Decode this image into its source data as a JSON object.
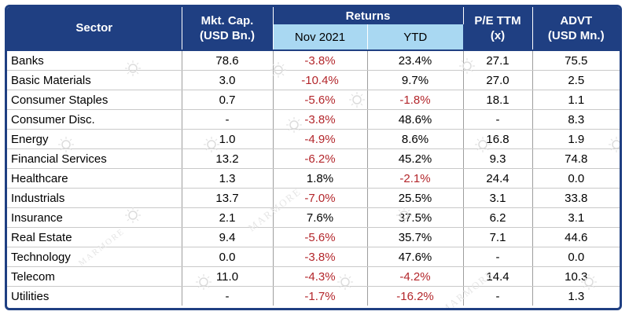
{
  "table": {
    "headers": {
      "sector": "Sector",
      "mktcap_line1": "Mkt. Cap.",
      "mktcap_line2": "(USD Bn.)",
      "returns": "Returns",
      "nov": "Nov 2021",
      "ytd": "YTD",
      "pe_line1": "P/E TTM",
      "pe_line2": "(x)",
      "advt_line1": "ADVT",
      "advt_line2": "(USD Mn.)"
    },
    "rows": [
      {
        "sector": "Banks",
        "mktcap": "78.6",
        "nov": "-3.8%",
        "ytd": "23.4%",
        "pe": "27.1",
        "advt": "75.5"
      },
      {
        "sector": "Basic Materials",
        "mktcap": "3.0",
        "nov": "-10.4%",
        "ytd": "9.7%",
        "pe": "27.0",
        "advt": "2.5"
      },
      {
        "sector": "Consumer Staples",
        "mktcap": "0.7",
        "nov": "-5.6%",
        "ytd": "-1.8%",
        "pe": "18.1",
        "advt": "1.1"
      },
      {
        "sector": "Consumer Disc.",
        "mktcap": "-",
        "nov": "-3.8%",
        "ytd": "48.6%",
        "pe": "-",
        "advt": "8.3"
      },
      {
        "sector": "Energy",
        "mktcap": "1.0",
        "nov": "-4.9%",
        "ytd": "8.6%",
        "pe": "16.8",
        "advt": "1.9"
      },
      {
        "sector": "Financial Services",
        "mktcap": "13.2",
        "nov": "-6.2%",
        "ytd": "45.2%",
        "pe": "9.3",
        "advt": "74.8"
      },
      {
        "sector": "Healthcare",
        "mktcap": "1.3",
        "nov": "1.8%",
        "ytd": "-2.1%",
        "pe": "24.4",
        "advt": "0.0"
      },
      {
        "sector": "Industrials",
        "mktcap": "13.7",
        "nov": "-7.0%",
        "ytd": "25.5%",
        "pe": "3.1",
        "advt": "33.8"
      },
      {
        "sector": "Insurance",
        "mktcap": "2.1",
        "nov": "7.6%",
        "ytd": "37.5%",
        "pe": "6.2",
        "advt": "3.1"
      },
      {
        "sector": "Real Estate",
        "mktcap": "9.4",
        "nov": "-5.6%",
        "ytd": "35.7%",
        "pe": "7.1",
        "advt": "44.6"
      },
      {
        "sector": "Technology",
        "mktcap": "0.0",
        "nov": "-3.8%",
        "ytd": "47.6%",
        "pe": "-",
        "advt": "0.0"
      },
      {
        "sector": "Telecom",
        "mktcap": "11.0",
        "nov": "-4.3%",
        "ytd": "-4.2%",
        "pe": "14.4",
        "advt": "10.3"
      },
      {
        "sector": "Utilities",
        "mktcap": "-",
        "nov": "-1.7%",
        "ytd": "-16.2%",
        "pe": "-",
        "advt": "1.3"
      }
    ]
  },
  "watermark": "MARMORE",
  "colors": {
    "header_bg": "#1f3f82",
    "subheader_bg": "#a9d8f2",
    "negative": "#b3262b",
    "positive": "#000000"
  }
}
